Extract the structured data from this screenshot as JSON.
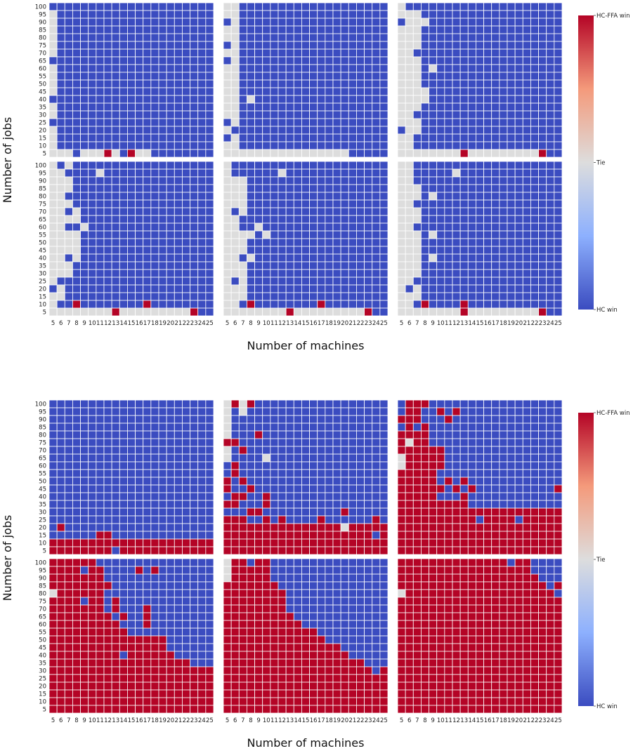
{
  "chart_data": {
    "type": "heatmap",
    "colors": {
      "hc_win": "#3b4cc0",
      "tie": "#dddddd",
      "hcffa_win": "#b40426"
    },
    "value_encoding": {
      "-1": "HC win",
      "0": "Tie",
      "1": "HC-FFA win"
    },
    "x_ticks": [
      "5",
      "6",
      "7",
      "8",
      "9",
      "10",
      "11",
      "12",
      "13",
      "14",
      "15",
      "16",
      "17",
      "18",
      "19",
      "20",
      "21",
      "22",
      "23",
      "24",
      "25"
    ],
    "y_ticks": [
      "100",
      "95",
      "90",
      "85",
      "80",
      "75",
      "70",
      "65",
      "60",
      "55",
      "50",
      "45",
      "40",
      "35",
      "30",
      "25",
      "20",
      "15",
      "10",
      "5"
    ],
    "figures": [
      {
        "xlabel": "Number of machines",
        "ylabel": "Number of jobs",
        "colorbar": {
          "top": "HC-FFA win",
          "mid": "Tie",
          "bottom": "HC win"
        },
        "panels": [
          [
            "BBBBBBBBBBBBBBBBBBBBB",
            "TBBBBBBBBBBBBBBBBBBBB",
            "TBBBBBBBBBBBBBBBBBBBB",
            "TBBBBBBBBBBBBBBBBBBBB",
            "TBBBBBBBBBBBBBBBBBBBB",
            "TBBBBBBBBBBBBBBBBBBBB",
            "TBBBBBBBBBBBBBBBBBBBB",
            "BBBBBBBBBBBBBBBBBBBBB",
            "TBBBBBBBBBBBBBBBBBBBB",
            "TBBBBBBBBBBBBBBBBBBBB",
            "TBBBBBBBBBBBBBBBBBBBB",
            "TBBBBBBBBBBBBBBBBBBBB",
            "BBBBBBBBBBBBBBBBBBBBB",
            "TBBBBBBBBBBBBBBBBBBBB",
            "TBBBBBBBBBBBBBBBBBBBB",
            "BBBBBBBBBBBBBBBBBBBBB",
            "TBBBBBBBBBBBBBBBBBBBB",
            "TBBBBBBBBBBBBBBBBBBBB",
            "TBBBBBBBBBBBBBBBBBBBB",
            "TTTBTTTRTBRTTBBBBBBBB"
          ],
          [
            "TTBBBBBBBBBBBBBBBBBBB",
            "TTBBBBBBBBBBBBBBBBBBB",
            "BTBBBBBBBBBBBBBBBBBBB",
            "TTBBBBBBBBBBBBBBBBBBB",
            "TTBBBBBBBBBBBBBBBBBBB",
            "BTBBBBBBBBBBBBBBBBBBB",
            "TTBBBBBBBBBBBBBBBBBBB",
            "BTBBBBBBBBBBBBBBBBBBB",
            "TTBBBBBBBBBBBBBBBBBBB",
            "TTBBBBBBBBBBBBBBBBBBB",
            "TTBBBBBBBBBBBBBBBBBBB",
            "TTBBBBBBBBBBBBBBBBBBB",
            "TTBTBBBBBBBBBBBBBBBBB",
            "TTBBBBBBBBBBBBBBBBBBB",
            "TTBBBBBBBBBBBBBBBBBBB",
            "BTBBBBBBBBBBBBBBBBBBB",
            "TBBBBBBBBBBBBBBBBBBBB",
            "BTBBBBBBBBBBBBBBBBBBB",
            "TTBBBBBBBBBBBBBBBBBBB",
            "TTTTTTTTTTTTTTTTBBBBB"
          ],
          [
            "TBBBBBBBBBBBBBBBBBBBB",
            "TTTBBBBBBBBBBBBBBBBBB",
            "BTTTBBBBBBBBBBBBBBBBB",
            "TTTBBBBBBBBBBBBBBBBBB",
            "TTTBBBBBBBBBBBBBBBBBB",
            "TTTBBBBBBBBBBBBBBBBBB",
            "TTBBBBBBBBBBBBBBBBBBB",
            "TTTBBBBBBBBBBBBBBBBBB",
            "TTTBTBBBBBBBBBBBBBBBB",
            "TTTBBBBBBBBBBBBBBBBBB",
            "TTTBBBBBBBBBBBBBBBBBB",
            "TTTTBBBBBBBBBBBBBBBBB",
            "TTTTBBBBBBBBBBBBBBBBB",
            "TTTBBBBBBBBBBBBBBBBBB",
            "TTBBBBBBBBBBBBBBBBBBB",
            "TTTBBBBBBBBBBBBBBBBBB",
            "BTTBBBBBBBBBBBBBBBBBB",
            "TTBBBBBBBBBBBBBBBBBBB",
            "TTBBBBBBBBBBBBBBBBBBB",
            "TTTTTTTTRTTTTTTTTTRBB"
          ],
          [
            "TBTBBBBBBBBBBBBBBBBBB",
            "TTBBBBTBBBBBBBBBBBBBB",
            "TTTBBBBBBBBBBBBBBBBBB",
            "TTTBBBBBBBBBBBBBBBBBB",
            "TTBBBBBBBBBBBBBBBBBBB",
            "TTTBBBBBBBBBBBBBBBBBB",
            "TTBTBBBBBBBBBBBBBBBBB",
            "TTTTBBBBBBBBBBBBBBBBB",
            "TTBBTBBBBBBBBBBBBBBBB",
            "TTTTBBBBBBBBBBBBBBBBB",
            "TTTTBBBBBBBBBBBBBBBBB",
            "TTTTBBBBBBBBBBBBBBBBB",
            "TTBTBBBBBBBBBBBBBBBBB",
            "TTTBBBBBBBBBBBBBBBBBB",
            "TTTBBBBBBBBBBBBBBBBBB",
            "TBBBBBBBBBBBBBBBBBBBB",
            "BTBBBBBBBBBBBBBBBBBBB",
            "TTBBBBBBBBBBBBBBBBBBB",
            "TBBRBBBBBBBBRBBBBBBBB",
            "TTTTTTTTRTTTTTTTTTRBB"
          ],
          [
            "TBBBBBBBBBBBBBBBBBBBB",
            "TBBBBBBTBBBBBBBBBBBBB",
            "TTTBBBBBBBBBBBBBBBBBB",
            "TTTBBBBBBBBBBBBBBBBBB",
            "TTTBBBBBBBBBBBBBBBBBB",
            "TTTBBBBBBBBBBBBBBBBBB",
            "TBTBBBBBBBBBBBBBBBBBB",
            "TTBBBBBBBBBBBBBBBBBBB",
            "TTBBTBBBBBBBBBBBBBBBB",
            "TTTTBTBBBBBBBBBBBBBBB",
            "TTTBBBBBBBBBBBBBBBBBB",
            "TTTBBBBBBBBBBBBBBBBBB",
            "TTBTBBBBBBBBBBBBBBBBB",
            "TTTBBBBBBBBBBBBBBBBBB",
            "TTTBBBBBBBBBBBBBBBBBB",
            "TBTBBBBBBBBBBBBBBBBBB",
            "TTTBBBBBBBBBBBBBBBBBB",
            "TTTBBBBBBBBBBBBBBBBBB",
            "TTBRBBBBBBBBRBBBBBBBB",
            "TTTTTTTTRTTTTTTTTTRBB"
          ],
          [
            "TTBBBBBBBBBBBBBBBBBBB",
            "TTBBBBBTBBBBBBBBBBBBB",
            "TTBBBBBBBBBBBBBBBBBBB",
            "TTTBBBBBBBBBBBBBBBBBB",
            "TTTBTBBBBBBBBBBBBBBBB",
            "TTBBBBBBBBBBBBBBBBBBB",
            "TTTBBBBBBBBBBBBBBBBBB",
            "TTTBBBBBBBBBBBBBBBBBB",
            "TTBBBBBBBBBBBBBBBBBBB",
            "TTTBTBBBBBBBBBBBBBBBB",
            "TTTBBBBBBBBBBBBBBBBBB",
            "TTTBBBBBBBBBBBBBBBBBB",
            "TTTBTBBBBBBBBBBBBBBBB",
            "TTTBBBBBBBBBBBBBBBBBB",
            "TTTBBBBBBBBBBBBBBBBBB",
            "TTBBBBBBBBBBBBBBBBBBB",
            "TBTBBBBBBBBBBBBBBBBBB",
            "TTTBBBBBBBBBBBBBBBBBB",
            "TTBRBBBBRBBBBBBBBBBBB",
            "TTTTTTTTRTTTTTTTTTRBB"
          ]
        ]
      },
      {
        "xlabel": "Number of machines",
        "ylabel": "Number of jobs",
        "colorbar": {
          "top": "HC-FFA win",
          "mid": "Tie",
          "bottom": "HC win"
        },
        "panels": [
          [
            "BBBBBBBBBBBBBBBBBBBBB",
            "BBBBBBBBBBBBBBBBBBBBB",
            "BBBBBBBBBBBBBBBBBBBBB",
            "BBBBBBBBBBBBBBBBBBBBB",
            "BBBBBBBBBBBBBBBBBBBBB",
            "BBBBBBBBBBBBBBBBBBBBB",
            "BBBBBBBBBBBBBBBBBBBBB",
            "BBBBBBBBBBBBBBBBBBBBB",
            "BBBBBBBBBBBBBBBBBBBBB",
            "BBBBBBBBBBBBBBBBBBBBB",
            "BBBBBBBBBBBBBBBBBBBBB",
            "BBBBBBBBBBBBBBBBBBBBB",
            "BBBBBBBBBBBBBBBBBBBBB",
            "BBBBBBBBBBBBBBBBBBBBB",
            "BBBBBBBBBBBBBBBBBBBBB",
            "BBBBBBBBBBBBBBBBBBBBB",
            "BRBBBBBBBBBBBBBBBBBBB",
            "BBBBBBRRBBBBBBBBBBBBB",
            "RRRRRRRRRRRRRRRRRRRRR",
            "RRRRRRRRBRRRRRRRRRRRR"
          ],
          [
            "TRTRBBBBBBBBBBBBBBBBB",
            "TBTBBBBBBBBBBBBBBBBBB",
            "TBBBBBBBBBBBBBBBBBBBB",
            "TBBBBBBBBBBBBBBBBBBBB",
            "TBBBRBBBBBBBBBBBBBBBB",
            "RRBBBBBBBBBBBBBBBBBBB",
            "TBRBBBBBBBBBBBBBBBBBB",
            "TBBBBTBBBBBBBBBBBBBBB",
            "BRBBBBBBBBBBBBBBBBBBB",
            "BRBBBBBBBBBBBBBBBBBBB",
            "RBRBBBBBBBBBBBBBBBBBB",
            "RBBRBBBBBBBBBBBBBBBBB",
            "BRRBBRBBBBBBBBBBBBBBB",
            "RRBBBRBBBBBBBBBBBBBBB",
            "BBBRRBBBBBBBBBBRBBBBB",
            "RRRBBRBRBBBBRBBBBBBRB",
            "RRRRRRRRRRRRRRRTRRRRR",
            "RRRRRRRRRRRRRRRRRRRBR",
            "RRRRRRRRRRRRRRRRRRRRR",
            "RRRRRRRRRRRRRRRRRRRRR"
          ],
          [
            "BRRRBBBBBBBBBBBBBBBBB",
            "BRRBBRBRBBBBBBBBBBBBB",
            "RRRBBBRBBBBBBBBBBBBBB",
            "BRBRBBBBBBBBBBBBBBBBB",
            "RRRRBBBBBBBBBBBBBBBBB",
            "RTRRBBBBBBBBBBBBBBBBB",
            "RRRRRRBBBBBBBBBBBBBBB",
            "TRRRRRBBBBBBBBBBBBBBB",
            "TRRRRRBBBBBBBBBBBBBBB",
            "RRRRRBBBBBBBBBBBBBBBB",
            "RRRRRBRBRBBBBBBBBBBBB",
            "RRRRRRBRBRBBBBBBBBBBR",
            "RRRRRBBBRBBBBBBBBBBBB",
            "RRRRRRRRRBBBBBBBBBBBB",
            "RRRRRRRRRRRRRRRRRRRRR",
            "RRRRRRRRRRBRRRRBRRRRR",
            "RRRRRRRRRRRRRRRRRRRRR",
            "RRRRRRRRRRRRRRRRRRRRR",
            "RRRRRRRRRRRRRRRRRRRRR",
            "RRRRRRRRRRRRRRRRRRRRR"
          ],
          [
            "RRRRRRBBBBBBBBBBBBBBB",
            "RRRRBRRBBBBRBRBBBBBBB",
            "RRRRRRRBBBBBBBBBBBBBB",
            "RRRRRRRRBBBBBBBBBBBBB",
            "TRRRRRRBBBBBBBBBBBBBB",
            "RRRRBRRBRBBBBBBBBBBBB",
            "RRRRRRRBRBBBRBBBBBBBB",
            "RRRRRRRRBRBBRBBBBBBBB",
            "RRRRRRRRRBBBRBBBBBBBB",
            "RRRRRRRRRRBBBBBBBBBBB",
            "RRRRRRRRRRRRRRRBBBBBB",
            "RRRRRRRRRRRRRRRBBBBBB",
            "RRRRRRRRRBRRRRRRBBBBB",
            "RRRRRRRRRRRRRRRRRRBBB",
            "RRRRRRRRRRRRRRRRRRRRR",
            "RRRRRRRRRRRRRRRRRRRRR",
            "RRRRRRRRRRRRRRRRRRRRR",
            "RRRRRRRRRRRRRRRRRRRRR",
            "RRRRRRRRRRRRRRRRRRRRR",
            "RRRRRRRRRRRRRRRRRRRRR"
          ],
          [
            "TRRBRRBBBBBBBBBBBBBBB",
            "TRRRRRBBBBBBBBBBBBBBB",
            "TRRRRRBBBBBBBBBBBBBBB",
            "RRRRRRRBBBBBBBBBBBBBB",
            "RRRRRRRRBBBBBBBBBBBBB",
            "RRRRRRRRBBBBBBBBBBBBB",
            "RRRRRRRRBBBBBBBBBBBBB",
            "RRRRRRRRRBBBBBBBBBBBB",
            "RRRRRRRRRRBBBBBBBBBBB",
            "RRRRRRRRRRRRBBBBBBBBB",
            "RRRRRRRRRRRRRBBBBBBBB",
            "RRRRRRRRRRRRRRRBBBBBB",
            "RRRRRRRRRRRRRRRRBBBBB",
            "RRRRRRRRRRRRRRRRRRBBB",
            "RRRRRRRRRRRRRRRRRRRBR",
            "RRRRRRRRRRRRRRRRRRRRR",
            "RRRRRRRRRRRRRRRRRRRRR",
            "RRRRRRRRRRRRRRRRRRRRR",
            "RRRRRRRRRRRRRRRRRRRRR",
            "RRRRRRRRRRRRRRRRRRRRR"
          ],
          [
            "RRRRRRRRRRRRRRBRRBBBB",
            "RRRRRRRRRRRRRRRRRBBBB",
            "RRRRRRRRRRRRRRRRRRBBB",
            "RRRRRRRRRRRRRRRRRRRBR",
            "TRRRRRRRRRRRRRRRRRRRB",
            "RRRRRRRRRRRRRRRRRRRRR",
            "RRRRRRRRRRRRRRRRRRRRR",
            "RRRRRRRRRRRRRRRRRRRRR",
            "RRRRRRRRRRRRRRRRRRRRR",
            "RRRRRRRRRRRRRRRRRRRRR",
            "RRRRRRRRRRRRRRRRRRRRR",
            "RRRRRRRRRRRRRRRRRRRRR",
            "RRRRRRRRRRRRRRRRRRRRR",
            "RRRRRRRRRRRRRRRRRRRRR",
            "RRRRRRRRRRRRRRRRRRRRR",
            "RRRRRRRRRRRRRRRRRRRRR",
            "RRRRRRRRRRRRRRRRRRRRR",
            "RRRRRRRRRRRRRRRRRRRRR",
            "RRRRRRRRRRRRRRRRRRRRR",
            "RRRRRRRRRRRRRRRRRRRRR"
          ]
        ]
      }
    ]
  }
}
